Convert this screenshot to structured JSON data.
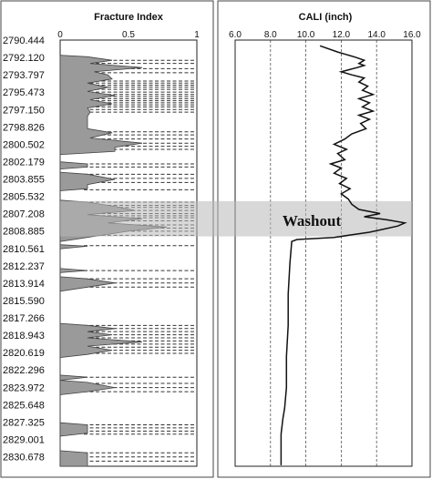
{
  "chart_data": [
    {
      "type": "area",
      "title": "Fracture Index",
      "x_ticks": [
        "0",
        "0.5",
        "1"
      ],
      "xlim": [
        0,
        1
      ],
      "depth_labels": [
        "2790.444",
        "2792.120",
        "2793.797",
        "2795.473",
        "2797.150",
        "2798.826",
        "2800.502",
        "2802.179",
        "2803.855",
        "2805.532",
        "2807.208",
        "2808.885",
        "2810.561",
        "2812.237",
        "2813.914",
        "2815.590",
        "2817.266",
        "2818.943",
        "2820.619",
        "2822.296",
        "2823.972",
        "2825.648",
        "2827.325",
        "2829.001",
        "2830.678"
      ],
      "ylim": [
        2790.444,
        2831.6
      ],
      "fracture_depths": [
        2792.4,
        2792.7,
        2793.2,
        2793.6,
        2794.4,
        2794.6,
        2794.8,
        2795.0,
        2795.2,
        2795.473,
        2795.7,
        2795.9,
        2796.1,
        2796.3,
        2796.5,
        2796.7,
        2796.9,
        2797.15,
        2797.4,
        2799.3,
        2799.6,
        2800.0,
        2800.4,
        2800.7,
        2801.0,
        2802.4,
        2802.7,
        2803.4,
        2803.8,
        2804.2,
        2804.9,
        2806.1,
        2806.4,
        2806.6,
        2806.9,
        2807.2,
        2807.4,
        2807.6,
        2807.9,
        2808.3,
        2808.6,
        2808.9,
        2809.3,
        2810.3,
        2812.7,
        2813.5,
        2813.9,
        2814.3,
        2818.0,
        2818.3,
        2818.6,
        2818.9,
        2819.2,
        2819.5,
        2819.8,
        2820.1,
        2820.4,
        2820.7,
        2823.0,
        2823.6,
        2824.0,
        2824.4,
        2827.6,
        2827.9,
        2828.2,
        2828.5,
        2830.3,
        2830.7,
        2831.1
      ],
      "profile": [
        [
          2791.9,
          0
        ],
        [
          2792.05,
          0.2
        ],
        [
          2792.4,
          0.38
        ],
        [
          2792.7,
          0.22
        ],
        [
          2793.1,
          0.6
        ],
        [
          2793.5,
          0.25
        ],
        [
          2793.8,
          0.35
        ],
        [
          2794.2,
          0.38
        ],
        [
          2794.6,
          0.2
        ],
        [
          2795.0,
          0.35
        ],
        [
          2795.4,
          0.2
        ],
        [
          2795.8,
          0.4
        ],
        [
          2796.2,
          0.22
        ],
        [
          2796.6,
          0.38
        ],
        [
          2797.0,
          0.2
        ],
        [
          2797.4,
          0.22
        ],
        [
          2797.8,
          0.2
        ],
        [
          2798.4,
          0.2
        ],
        [
          2799.0,
          0.2
        ],
        [
          2799.4,
          0.38
        ],
        [
          2799.9,
          0.22
        ],
        [
          2800.4,
          0.6
        ],
        [
          2800.8,
          0.4
        ],
        [
          2801.2,
          0.4
        ],
        [
          2801.5,
          0
        ],
        [
          2802.2,
          0
        ],
        [
          2802.4,
          0.2
        ],
        [
          2802.7,
          0.2
        ],
        [
          2802.9,
          0
        ],
        [
          2803.2,
          0
        ],
        [
          2803.4,
          0.2
        ],
        [
          2803.9,
          0.4
        ],
        [
          2804.4,
          0.2
        ],
        [
          2804.8,
          0.2
        ],
        [
          2805.0,
          0
        ],
        [
          2805.9,
          0
        ],
        [
          2806.1,
          0.2
        ],
        [
          2806.5,
          0.4
        ],
        [
          2806.9,
          0.55
        ],
        [
          2807.3,
          0.2
        ],
        [
          2807.7,
          0.6
        ],
        [
          2808.1,
          0.35
        ],
        [
          2808.5,
          0.78
        ],
        [
          2808.9,
          0.5
        ],
        [
          2809.3,
          0.3
        ],
        [
          2809.6,
          0.15
        ],
        [
          2809.9,
          0
        ],
        [
          2810.2,
          0
        ],
        [
          2810.35,
          0.2
        ],
        [
          2810.6,
          0
        ],
        [
          2812.5,
          0
        ],
        [
          2812.7,
          0.2
        ],
        [
          2812.9,
          0
        ],
        [
          2813.3,
          0
        ],
        [
          2813.5,
          0.2
        ],
        [
          2813.9,
          0.4
        ],
        [
          2814.3,
          0.2
        ],
        [
          2814.7,
          0
        ],
        [
          2817.8,
          0
        ],
        [
          2818.0,
          0.2
        ],
        [
          2818.3,
          0.4
        ],
        [
          2818.6,
          0.2
        ],
        [
          2818.9,
          0.38
        ],
        [
          2819.2,
          0.2
        ],
        [
          2819.6,
          0.6
        ],
        [
          2820.0,
          0.2
        ],
        [
          2820.4,
          0.38
        ],
        [
          2820.8,
          0.2
        ],
        [
          2821.1,
          0
        ],
        [
          2822.8,
          0
        ],
        [
          2823.0,
          0.2
        ],
        [
          2823.3,
          0
        ],
        [
          2823.5,
          0.2
        ],
        [
          2824.0,
          0.4
        ],
        [
          2824.4,
          0.2
        ],
        [
          2824.7,
          0
        ],
        [
          2827.4,
          0
        ],
        [
          2827.6,
          0.2
        ],
        [
          2828.0,
          0.2
        ],
        [
          2828.4,
          0.2
        ],
        [
          2828.7,
          0
        ],
        [
          2830.1,
          0
        ],
        [
          2830.3,
          0.2
        ],
        [
          2830.7,
          0.2
        ],
        [
          2831.1,
          0.2
        ],
        [
          2831.6,
          0.2
        ]
      ]
    },
    {
      "type": "line",
      "title": "CALI (inch)",
      "x_ticks": [
        "6.0",
        "8.0",
        "10.0",
        "12.0",
        "14.0",
        "16.0"
      ],
      "xlim": [
        6,
        16
      ],
      "ylim": [
        2790.444,
        2831.6
      ],
      "annotation": "Washout",
      "washout_range": [
        2806.0,
        2809.4
      ],
      "series": [
        {
          "values": [
            [
              2791.0,
              10.8
            ],
            [
              2791.6,
              11.8
            ],
            [
              2792.1,
              12.8
            ],
            [
              2792.4,
              13.3
            ],
            [
              2792.7,
              13.0
            ],
            [
              2792.9,
              13.3
            ],
            [
              2793.1,
              12.9
            ],
            [
              2793.5,
              12.0
            ],
            [
              2793.8,
              12.6
            ],
            [
              2794.1,
              13.3
            ],
            [
              2794.5,
              13.0
            ],
            [
              2794.9,
              13.5
            ],
            [
              2795.3,
              13.2
            ],
            [
              2795.7,
              13.8
            ],
            [
              2796.1,
              13.0
            ],
            [
              2796.5,
              13.6
            ],
            [
              2796.9,
              13.2
            ],
            [
              2797.3,
              13.8
            ],
            [
              2797.7,
              13.0
            ],
            [
              2798.1,
              13.6
            ],
            [
              2798.5,
              13.1
            ],
            [
              2799.0,
              13.4
            ],
            [
              2799.5,
              12.6
            ],
            [
              2800.0,
              12.2
            ],
            [
              2800.5,
              11.6
            ],
            [
              2801.0,
              12.3
            ],
            [
              2801.4,
              11.8
            ],
            [
              2802.0,
              12.2
            ],
            [
              2802.4,
              11.4
            ],
            [
              2802.8,
              12.0
            ],
            [
              2803.3,
              11.6
            ],
            [
              2803.8,
              12.3
            ],
            [
              2804.3,
              11.9
            ],
            [
              2804.8,
              12.5
            ],
            [
              2805.3,
              12.0
            ],
            [
              2805.8,
              12.4
            ],
            [
              2806.3,
              12.6
            ],
            [
              2806.8,
              13.0
            ],
            [
              2807.2,
              14.2
            ],
            [
              2807.5,
              13.3
            ],
            [
              2807.8,
              14.6
            ],
            [
              2808.1,
              15.6
            ],
            [
              2808.4,
              15.2
            ],
            [
              2808.7,
              14.4
            ],
            [
              2809.0,
              13.6
            ],
            [
              2809.3,
              12.4
            ],
            [
              2809.5,
              11.6
            ],
            [
              2809.7,
              9.5
            ],
            [
              2809.9,
              9.2
            ],
            [
              2812.0,
              9.1
            ],
            [
              2815.0,
              9.0
            ],
            [
              2818.0,
              9.0
            ],
            [
              2821.0,
              8.9
            ],
            [
              2824.0,
              8.9
            ],
            [
              2826.0,
              8.8
            ],
            [
              2827.0,
              8.7
            ],
            [
              2828.5,
              8.6
            ],
            [
              2830.0,
              8.6
            ],
            [
              2831.5,
              8.6
            ]
          ]
        }
      ]
    }
  ]
}
